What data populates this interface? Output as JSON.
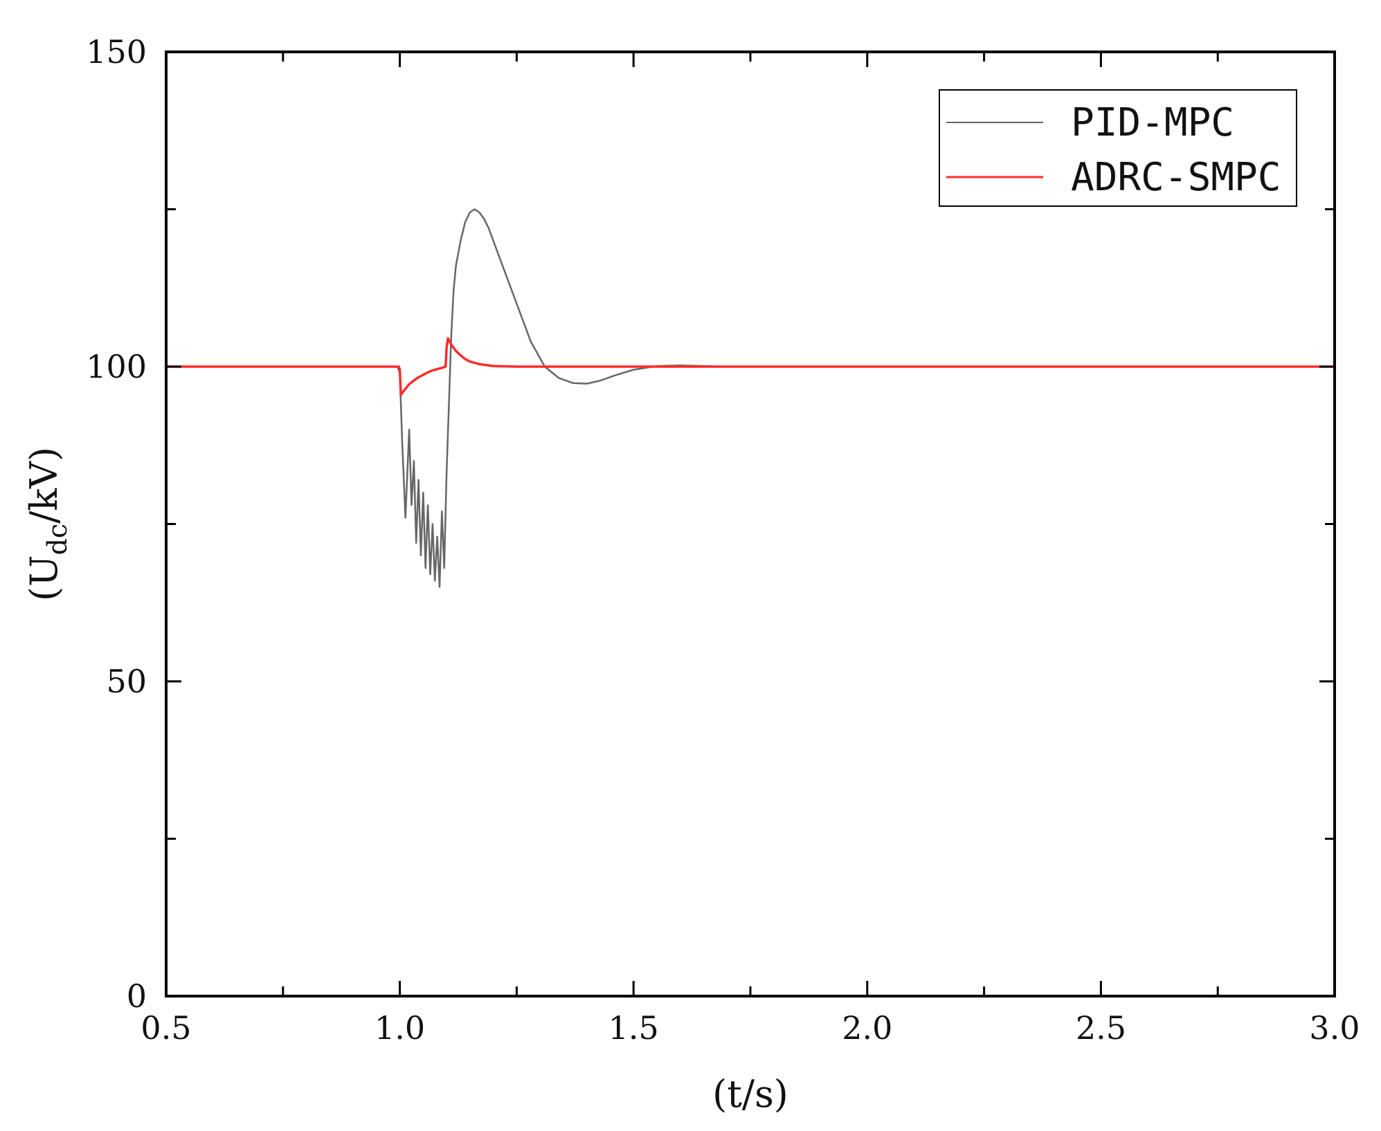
{
  "chart_data": {
    "type": "line",
    "xlabel": "(t/s)",
    "ylabel": "(U",
    "ylabel_sub": "dc",
    "ylabel_tail": "/kV)",
    "xlim": [
      0.5,
      3.0
    ],
    "ylim": [
      0,
      150
    ],
    "x_ticks": [
      0.5,
      1.0,
      1.5,
      2.0,
      2.5,
      3.0
    ],
    "x_tick_labels": [
      "0.5",
      "1.0",
      "1.5",
      "2.0",
      "2.5",
      "3.0"
    ],
    "x_minor_ticks": [
      0.75,
      1.25,
      1.75,
      2.25,
      2.75
    ],
    "y_ticks": [
      0,
      50,
      100,
      150
    ],
    "y_tick_labels": [
      "0",
      "50",
      "100",
      "150"
    ],
    "y_minor_ticks": [
      25,
      75,
      125
    ],
    "grid": false,
    "legend_position": "top-right",
    "series": [
      {
        "name": "PID-MPC",
        "color": "#666666",
        "x": [
          0.5,
          0.995,
          1.0,
          1.005,
          1.012,
          1.02,
          1.025,
          1.03,
          1.035,
          1.04,
          1.045,
          1.05,
          1.055,
          1.06,
          1.065,
          1.07,
          1.075,
          1.08,
          1.085,
          1.09,
          1.095,
          1.1,
          1.105,
          1.11,
          1.115,
          1.12,
          1.13,
          1.14,
          1.15,
          1.16,
          1.17,
          1.18,
          1.19,
          1.2,
          1.22,
          1.25,
          1.28,
          1.31,
          1.34,
          1.37,
          1.4,
          1.43,
          1.46,
          1.5,
          1.55,
          1.6,
          1.65,
          1.7,
          1.8,
          2.0,
          3.0
        ],
        "y": [
          100,
          100,
          99,
          88,
          76,
          90,
          78,
          85,
          72,
          82,
          70,
          80,
          68,
          78,
          67,
          75,
          66,
          73,
          65,
          77,
          68,
          83,
          94,
          105,
          112,
          116,
          120,
          123,
          124.5,
          125,
          124.5,
          123.5,
          122,
          120,
          116,
          110,
          104,
          100,
          98.2,
          97.4,
          97.3,
          97.8,
          98.6,
          99.5,
          100.1,
          100.2,
          100.1,
          100,
          100,
          100,
          100
        ]
      },
      {
        "name": "ADRC-SMPC",
        "color": "#ff2b2b",
        "x": [
          0.5,
          0.998,
          1.0,
          1.002,
          1.01,
          1.02,
          1.03,
          1.04,
          1.05,
          1.06,
          1.07,
          1.08,
          1.09,
          1.098,
          1.1,
          1.103,
          1.11,
          1.12,
          1.13,
          1.14,
          1.15,
          1.17,
          1.2,
          1.25,
          1.3,
          3.0
        ],
        "y": [
          100,
          100,
          99.5,
          95.5,
          96.3,
          97.2,
          97.8,
          98.3,
          98.7,
          99.1,
          99.4,
          99.6,
          99.8,
          100,
          103,
          104.5,
          103.5,
          102.5,
          101.8,
          101.2,
          100.8,
          100.4,
          100.1,
          100,
          100,
          100
        ]
      }
    ]
  }
}
